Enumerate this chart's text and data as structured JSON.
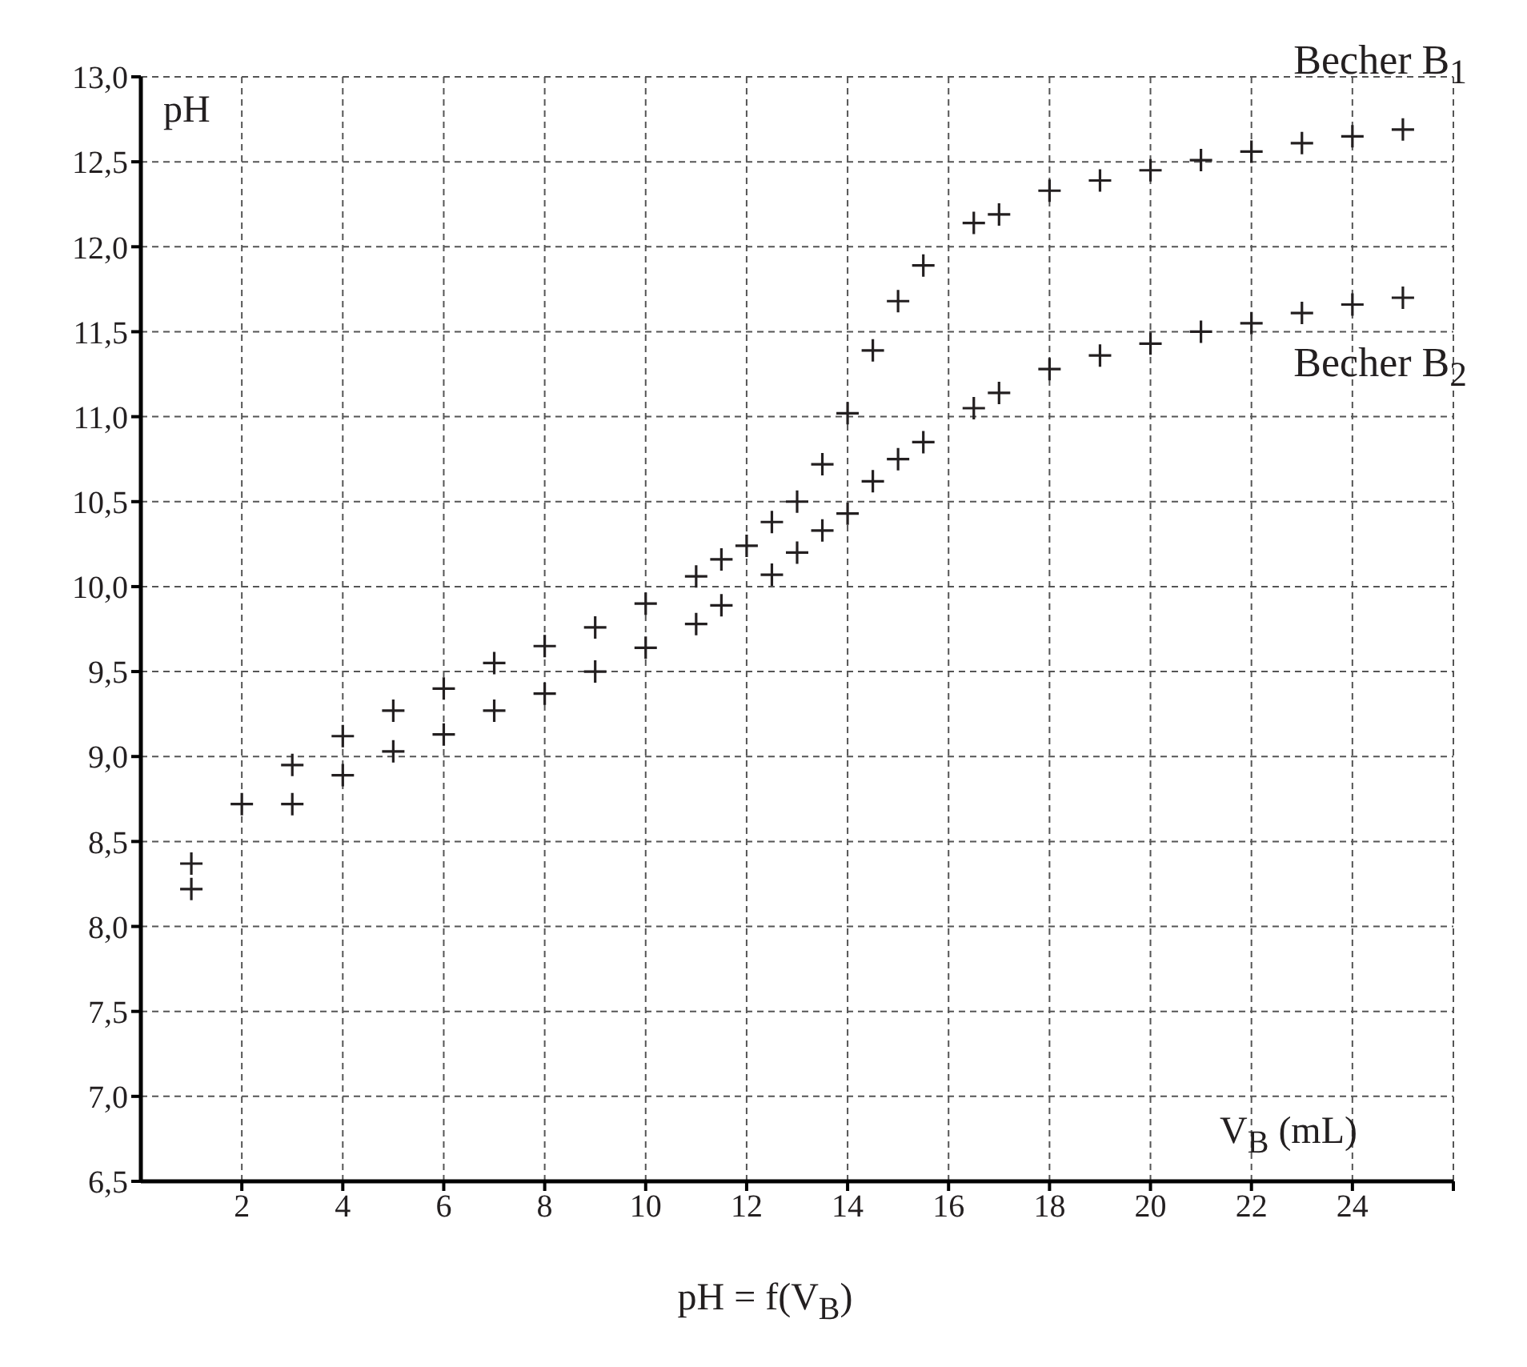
{
  "chart_data": {
    "type": "scatter",
    "xlabel": "V$_{B}$ (mL)",
    "ylabel": "pH",
    "annotations": [
      "pH = f(V$_{B}$)"
    ],
    "xlim": [
      0,
      26
    ],
    "xticks": [
      2,
      4,
      6,
      8,
      10,
      12,
      14,
      16,
      18,
      20,
      22,
      24,
      {
        "value": 26,
        "label": null
      }
    ],
    "ylim": [
      6.5,
      13.0
    ],
    "yticks": [
      {
        "value": 6.5,
        "label": "6,5"
      },
      {
        "value": 7.0,
        "label": "7,0"
      },
      {
        "value": 7.5,
        "label": "7,5"
      },
      {
        "value": 8.0,
        "label": "8,0"
      },
      {
        "value": 8.5,
        "label": "8,5"
      },
      {
        "value": 9.0,
        "label": "9,0"
      },
      {
        "value": 9.5,
        "label": "9,5"
      },
      {
        "value": 10.0,
        "label": "10,0"
      },
      {
        "value": 10.5,
        "label": "10,5"
      },
      {
        "value": 11.0,
        "label": "11,0"
      },
      {
        "value": 11.5,
        "label": "11,5"
      },
      {
        "value": 12.0,
        "label": "12,0"
      },
      {
        "value": 12.5,
        "label": "12,5"
      },
      {
        "value": 13.0,
        "label": "13,0"
      }
    ],
    "grid": true,
    "marker": "cross",
    "series": [
      {
        "name": "Becher B$_{1}$",
        "color": "#231f20",
        "x": [
          1,
          2,
          3,
          4,
          5,
          6,
          7,
          8,
          9,
          10,
          11,
          11.5,
          12,
          12.5,
          13,
          13.5,
          14,
          14.5,
          15,
          15.5,
          16.5,
          17,
          18,
          19,
          20,
          21,
          22,
          23,
          24,
          25
        ],
        "values": [
          8.37,
          8.72,
          8.95,
          9.12,
          9.27,
          9.4,
          9.55,
          9.65,
          9.76,
          9.9,
          10.06,
          10.16,
          10.24,
          10.38,
          10.5,
          10.72,
          11.02,
          11.39,
          11.68,
          11.89,
          12.14,
          12.19,
          12.33,
          12.39,
          12.45,
          12.51,
          12.56,
          12.61,
          12.65,
          12.69
        ]
      },
      {
        "name": "Becher B$_{2}$",
        "color": "#231f20",
        "x": [
          1,
          3,
          4,
          5,
          6,
          7,
          8,
          9,
          10,
          11,
          11.5,
          12.5,
          13,
          13.5,
          14,
          14.5,
          15,
          15.5,
          16.5,
          17,
          18,
          19,
          20,
          21,
          22,
          23,
          24,
          25
        ],
        "values": [
          8.22,
          8.72,
          8.89,
          9.03,
          9.13,
          9.27,
          9.37,
          9.5,
          9.64,
          9.78,
          9.89,
          10.07,
          10.2,
          10.33,
          10.43,
          10.62,
          10.75,
          10.85,
          11.05,
          11.14,
          11.28,
          11.36,
          11.43,
          11.5,
          11.55,
          11.61,
          11.66,
          11.7
        ]
      }
    ]
  }
}
